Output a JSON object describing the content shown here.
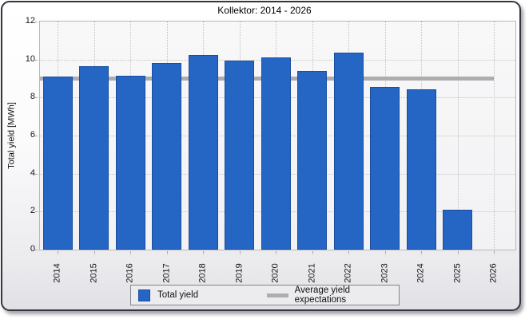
{
  "window": {
    "title": "Kollektor: 2014 - 2026"
  },
  "chart_data": {
    "type": "bar",
    "title": "Kollektor: 2014 - 2026",
    "xlabel": "",
    "ylabel": "Total yield [MWh]",
    "ylim": [
      0,
      12
    ],
    "ytick_step": 2,
    "grid": true,
    "legend_position": "bottom",
    "categories": [
      "2014",
      "2015",
      "2016",
      "2017",
      "2018",
      "2019",
      "2020",
      "2021",
      "2022",
      "2023",
      "2024",
      "2025",
      "2026"
    ],
    "series": [
      {
        "name": "Total yield",
        "type": "bar",
        "color": "#2565c4",
        "border_color": "#1a4e9c",
        "values": [
          9.1,
          9.65,
          9.15,
          9.8,
          10.25,
          9.95,
          10.1,
          9.4,
          10.35,
          8.55,
          8.45,
          2.1,
          null
        ]
      },
      {
        "name": "Average yield expectations",
        "type": "line",
        "color": "#adadaf",
        "value": 9.0
      }
    ]
  }
}
